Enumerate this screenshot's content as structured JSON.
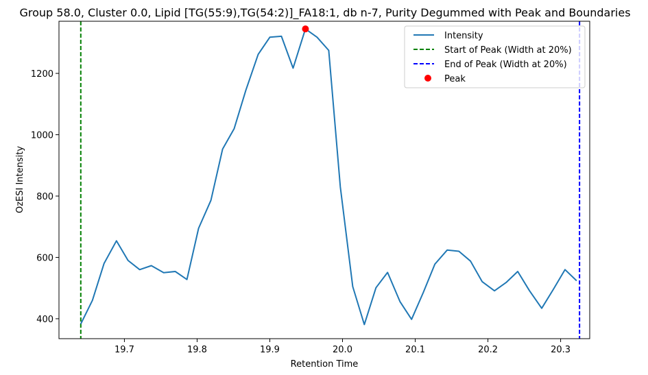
{
  "chart_data": {
    "type": "line",
    "title": "Group 58.0, Cluster 0.0, Lipid [TG(55:9),TG(54:2)]_FA18:1, db n-7, Purity Degummed with Peak and Boundaries",
    "xlabel": "Retention Time",
    "ylabel": "OzESI Intensity",
    "xlim": [
      19.61,
      20.34
    ],
    "ylim": [
      335,
      1370
    ],
    "xticks": [
      19.7,
      19.8,
      19.9,
      20.0,
      20.1,
      20.2,
      20.3
    ],
    "xtick_labels": [
      "19.7",
      "19.8",
      "19.9",
      "20.0",
      "20.1",
      "20.2",
      "20.3"
    ],
    "yticks": [
      400,
      600,
      800,
      1000,
      1200
    ],
    "ytick_labels": [
      "400",
      "600",
      "800",
      "1000",
      "1200"
    ],
    "grid": false,
    "legend_position": "top-right",
    "colors": {
      "intensity": "#1f77b4",
      "start": "#008000",
      "end": "#0000ff",
      "peak": "#ff0000"
    },
    "series": [
      {
        "name": "Intensity",
        "x": [
          19.64,
          19.656,
          19.672,
          19.689,
          19.705,
          19.721,
          19.737,
          19.754,
          19.77,
          19.786,
          19.802,
          19.819,
          19.835,
          19.851,
          19.867,
          19.884,
          19.9,
          19.916,
          19.932,
          19.949,
          19.965,
          19.981,
          19.997,
          20.014,
          20.03,
          20.046,
          20.062,
          20.079,
          20.095,
          20.111,
          20.127,
          20.144,
          20.16,
          20.176,
          20.192,
          20.209,
          20.225,
          20.241,
          20.257,
          20.274,
          20.29,
          20.306,
          20.322
        ],
        "values": [
          383,
          460,
          580,
          654,
          590,
          560,
          573,
          550,
          554,
          528,
          695,
          786,
          953,
          1020,
          1145,
          1262,
          1318,
          1321,
          1217,
          1345,
          1318,
          1275,
          830,
          505,
          381,
          501,
          551,
          456,
          398,
          485,
          578,
          624,
          620,
          588,
          521,
          491,
          518,
          554,
          492,
          434,
          496,
          560,
          524
        ]
      }
    ],
    "vlines": [
      {
        "name": "Start of Peak (Width at 20%)",
        "x": 19.64
      },
      {
        "name": "End of Peak (Width at 20%)",
        "x": 20.326
      }
    ],
    "peak": {
      "name": "Peak",
      "x": 19.949,
      "y": 1345
    }
  }
}
